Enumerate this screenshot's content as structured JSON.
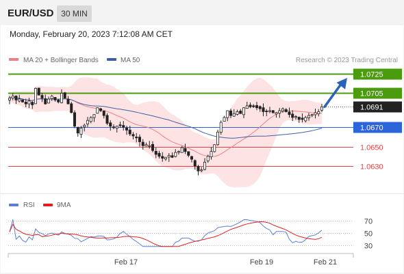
{
  "header": {
    "pair": "EUR/USD",
    "timeframe": "30 MIN"
  },
  "date_line": "Monday, February 20, 2023 7:12:08 AM CET",
  "legend": {
    "ma20": {
      "label": "MA 20 + Bollinger Bands",
      "color": "#f08080"
    },
    "ma50": {
      "label": "MA 50",
      "color": "#3f5fa8"
    },
    "credit": "Research © 2023 Trading Central"
  },
  "indicator_legend": {
    "rsi": {
      "label": "RSI",
      "color": "#5b7fd6"
    },
    "ma9": {
      "label": "9MA",
      "color": "#e02020"
    }
  },
  "levels": [
    {
      "value": "1.0725",
      "color": "#4a9b0e",
      "type": "resistance",
      "style": "box"
    },
    {
      "value": "1.0705",
      "color": "#4a9b0e",
      "type": "resistance",
      "style": "box"
    },
    {
      "value": "1.0691",
      "color": "#222222",
      "type": "current",
      "style": "box"
    },
    {
      "value": "1.0670",
      "color": "#2b65d9",
      "type": "pivot",
      "style": "box"
    },
    {
      "value": "1.0650",
      "color": "#e04545",
      "type": "support",
      "style": "text"
    },
    {
      "value": "1.0630",
      "color": "#e04545",
      "type": "support",
      "style": "text"
    }
  ],
  "rsi_axis": [
    "70",
    "50",
    "30"
  ],
  "x_axis": [
    "Feb 17",
    "Feb 19",
    "Feb 21"
  ],
  "chart_data": {
    "type": "candlestick",
    "series": [
      {
        "name": "MA 20 + Bollinger Bands"
      },
      {
        "name": "MA 50"
      },
      {
        "name": "RSI"
      },
      {
        "name": "9MA"
      }
    ],
    "close": [
      1.07,
      1.0702,
      1.0698,
      1.0699,
      1.0696,
      1.0694,
      1.0697,
      1.0693,
      1.071,
      1.0703,
      1.07,
      1.0694,
      1.0699,
      1.0702,
      1.0698,
      1.0696,
      1.0705,
      1.07,
      1.0694,
      1.0685,
      1.0671,
      1.0664,
      1.0669,
      1.0672,
      1.0677,
      1.068,
      1.0683,
      1.069,
      1.0687,
      1.0682,
      1.0674,
      1.0671,
      1.067,
      1.0671,
      1.0672,
      1.067,
      1.0667,
      1.0663,
      1.0661,
      1.0659,
      1.0655,
      1.0651,
      1.0652,
      1.0651,
      1.0646,
      1.0642,
      1.064,
      1.0638,
      1.0639,
      1.0641,
      1.0639,
      1.0644,
      1.0645,
      1.0649,
      1.0645,
      1.0641,
      1.0637,
      1.063,
      1.0625,
      1.0626,
      1.0634,
      1.064,
      1.0645,
      1.0652,
      1.0665,
      1.0675,
      1.068,
      1.0687,
      1.0682,
      1.0684,
      1.0686,
      1.0684,
      1.069,
      1.0692,
      1.0691,
      1.0691,
      1.069,
      1.0689,
      1.0686,
      1.0686,
      1.0687,
      1.0685,
      1.0685,
      1.0687,
      1.0689,
      1.0686,
      1.0683,
      1.068,
      1.0681,
      1.0678,
      1.0678,
      1.068,
      1.0682,
      1.0683,
      1.0685,
      1.0686,
      1.0691
    ],
    "ylim": [
      1.0615,
      1.0735
    ],
    "projection_target": 1.0725
  }
}
